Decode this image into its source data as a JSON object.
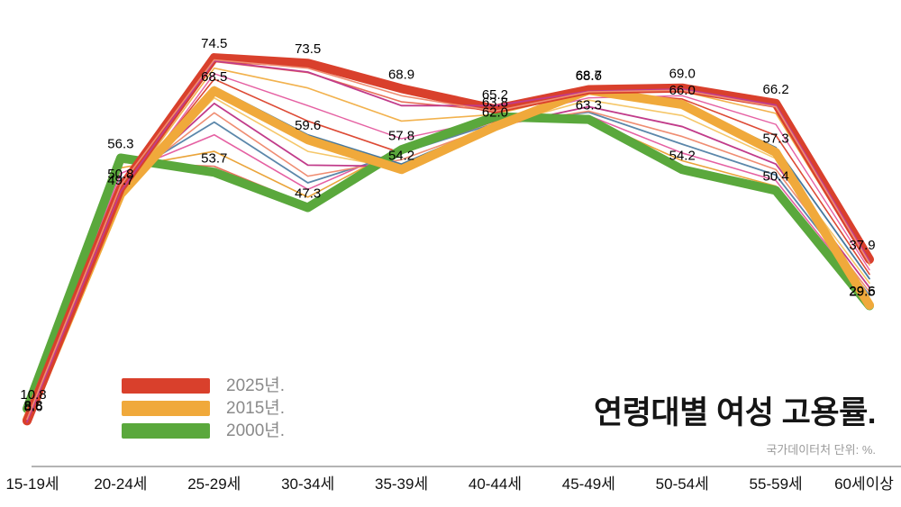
{
  "chart_data": {
    "type": "line",
    "title": "연령대별 여성 고용률.",
    "source_note": "국가데이터처 단위: %.",
    "unit": "%",
    "grid": false,
    "legend_position": "bottom-left",
    "ylim": [
      0,
      80
    ],
    "axis_color": "#9b9b9b",
    "label_color": "#000000",
    "categories": [
      "15-19세",
      "20-24세",
      "25-29세",
      "30-34세",
      "35-39세",
      "40-44세",
      "45-49세",
      "50-54세",
      "55-59세",
      "60세이상"
    ],
    "series": [
      {
        "name": "2025년.",
        "color": "#d9402c",
        "width": 10,
        "labeled": true,
        "values": [
          8.6,
          50.8,
          74.5,
          73.5,
          68.9,
          65.2,
          68.7,
          69.0,
          66.2,
          37.9
        ]
      },
      {
        "name": "2015년.",
        "color": "#f0a93b",
        "width": 10,
        "labeled": true,
        "values": [
          8.8,
          49.7,
          68.5,
          59.6,
          54.2,
          62.0,
          68.6,
          66.0,
          57.3,
          29.6
        ]
      },
      {
        "name": "2000년.",
        "color": "#5aa83c",
        "width": 10,
        "labeled": true,
        "values": [
          10.8,
          56.3,
          53.7,
          47.3,
          57.8,
          63.8,
          63.3,
          54.2,
          50.4,
          29.5
        ]
      }
    ],
    "background_series": [
      {
        "name": "bg-01",
        "color": "#e8705a",
        "width": 1.6,
        "values": [
          10.2,
          55.5,
          54.8,
          47.8,
          57.9,
          63.6,
          63.2,
          54.6,
          50.6,
          29.7
        ]
      },
      {
        "name": "bg-02",
        "color": "#eaa43a",
        "width": 1.6,
        "values": [
          9.6,
          54.5,
          57.5,
          49.2,
          58.2,
          63.4,
          63.4,
          55.8,
          51.2,
          30.2
        ]
      },
      {
        "name": "bg-03",
        "color": "#e560a2",
        "width": 1.6,
        "values": [
          9.0,
          53.5,
          60.5,
          50.6,
          58.0,
          63.0,
          64.0,
          57.2,
          52.2,
          30.8
        ]
      },
      {
        "name": "bg-04",
        "color": "#5b87aa",
        "width": 1.8,
        "values": [
          8.6,
          52.5,
          62.8,
          51.8,
          57.2,
          62.6,
          64.6,
          58.8,
          53.2,
          31.4
        ]
      },
      {
        "name": "bg-05",
        "color": "#ef8d72",
        "width": 1.6,
        "values": [
          8.2,
          51.2,
          64.5,
          53.0,
          56.0,
          62.2,
          64.8,
          60.2,
          54.2,
          32.0
        ]
      },
      {
        "name": "bg-06",
        "color": "#c13b8a",
        "width": 1.8,
        "values": [
          8.3,
          50.6,
          66.2,
          55.0,
          54.8,
          62.0,
          65.6,
          62.0,
          55.2,
          32.8
        ]
      },
      {
        "name": "bg-07",
        "color": "#f5c76a",
        "width": 1.6,
        "values": [
          8.5,
          50.0,
          67.2,
          57.5,
          54.3,
          62.1,
          66.8,
          64.0,
          56.2,
          33.6
        ]
      },
      {
        "name": "bg-08",
        "color": "#46789e",
        "width": 1.8,
        "values": [
          8.8,
          49.6,
          69.2,
          60.5,
          55.2,
          62.4,
          68.2,
          66.2,
          58.2,
          34.4
        ]
      },
      {
        "name": "bg-09",
        "color": "#dd4a35",
        "width": 1.6,
        "values": [
          8.7,
          49.3,
          70.6,
          63.0,
          57.2,
          63.0,
          68.4,
          67.0,
          60.4,
          35.2
        ]
      },
      {
        "name": "bg-10",
        "color": "#e560a2",
        "width": 1.4,
        "values": [
          8.4,
          48.6,
          71.6,
          65.8,
          59.8,
          63.4,
          67.2,
          67.6,
          62.4,
          36.0
        ]
      },
      {
        "name": "bg-11",
        "color": "#f2b24e",
        "width": 1.6,
        "values": [
          8.5,
          49.4,
          72.6,
          69.0,
          63.0,
          64.2,
          68.4,
          68.4,
          64.4,
          36.9
        ]
      },
      {
        "name": "bg-12",
        "color": "#e8705a",
        "width": 1.6,
        "values": [
          8.6,
          50.4,
          73.8,
          71.8,
          66.5,
          64.9,
          68.7,
          68.9,
          65.7,
          37.5
        ]
      }
    ],
    "overlay_series": [
      {
        "name": "ov-magenta",
        "color": "#c13b8a",
        "width": 1.8,
        "values": [
          8.4,
          50.2,
          73.9,
          71.9,
          65.8,
          65.8,
          68.4,
          68.8,
          65.9,
          37.6
        ]
      },
      {
        "name": "ov-salmon",
        "color": "#ef8d72",
        "width": 1.6,
        "values": [
          8.9,
          51.3,
          74.1,
          72.6,
          67.6,
          64.8,
          68.3,
          68.6,
          65.6,
          37.2
        ]
      }
    ]
  }
}
